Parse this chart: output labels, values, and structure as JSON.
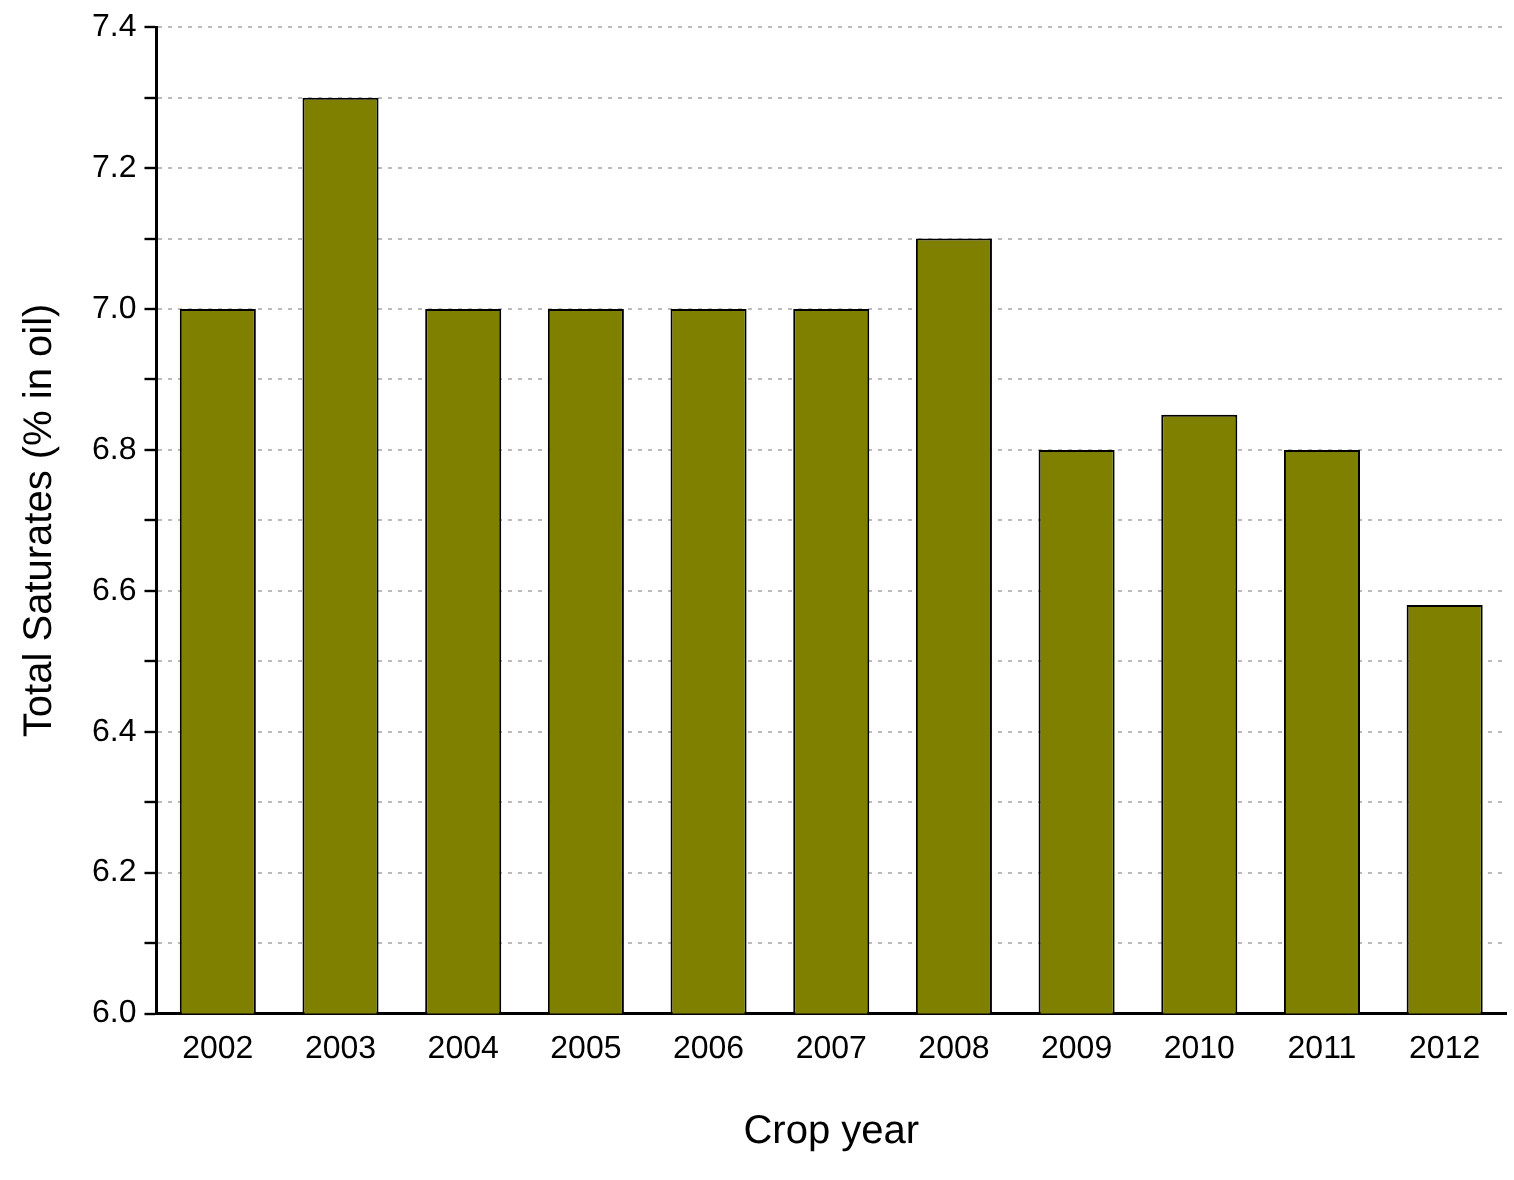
{
  "chart_data": {
    "type": "bar",
    "xlabel": "Crop year",
    "ylabel": "Total Saturates (% in oil)",
    "categories": [
      "2002",
      "2003",
      "2004",
      "2005",
      "2006",
      "2007",
      "2008",
      "2009",
      "2010",
      "2011",
      "2012"
    ],
    "values": [
      7.0,
      7.3,
      7.0,
      7.0,
      7.0,
      7.0,
      7.1,
      6.8,
      6.85,
      6.8,
      6.58
    ],
    "color": "#808000",
    "ylim": [
      6.0,
      7.4
    ],
    "yticks": [
      {
        "value": 6.0,
        "label": "6.0"
      },
      {
        "value": 6.1,
        "label": null
      },
      {
        "value": 6.2,
        "label": "6.2"
      },
      {
        "value": 6.3,
        "label": null
      },
      {
        "value": 6.4,
        "label": "6.4"
      },
      {
        "value": 6.5,
        "label": null
      },
      {
        "value": 6.6,
        "label": "6.6"
      },
      {
        "value": 6.7,
        "label": null
      },
      {
        "value": 6.8,
        "label": "6.8"
      },
      {
        "value": 6.9,
        "label": null
      },
      {
        "value": 7.0,
        "label": "7.0"
      },
      {
        "value": 7.1,
        "label": null
      },
      {
        "value": 7.2,
        "label": "7.2"
      },
      {
        "value": 7.3,
        "label": null
      },
      {
        "value": 7.4,
        "label": "7.4"
      }
    ],
    "grid": "y",
    "legend": false
  }
}
